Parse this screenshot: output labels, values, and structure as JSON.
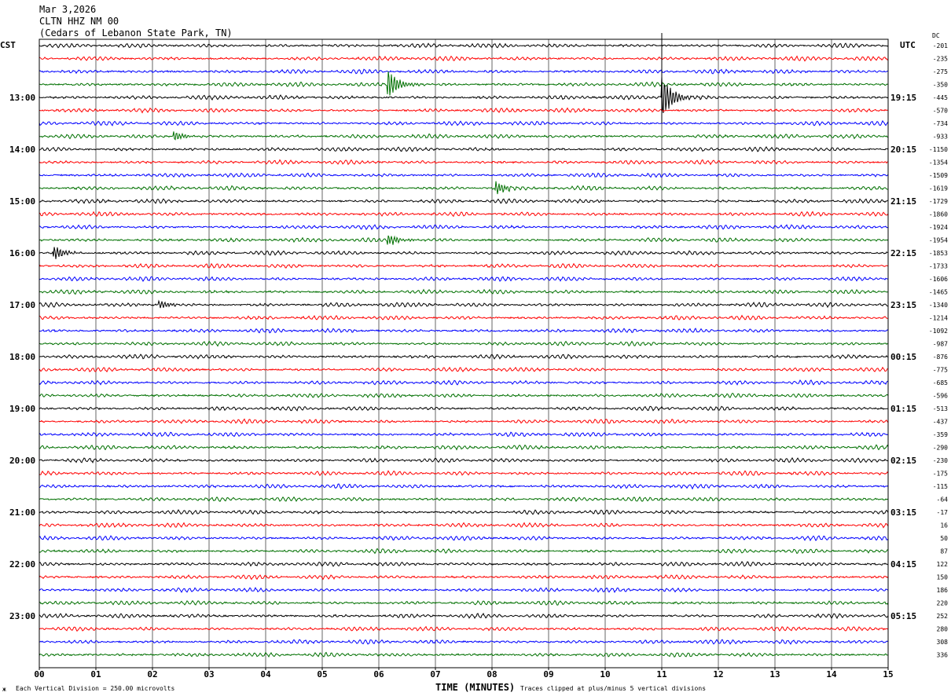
{
  "header": {
    "date": "Mar 3,2026",
    "station": "CLTN HHZ NM 00",
    "location": "(Cedars of Lebanon State Park, TN)"
  },
  "chart_data": {
    "type": "line",
    "subtype": "helicorder",
    "xlabel": "TIME (MINUTES)",
    "xlim": [
      0,
      15
    ],
    "x_ticks": [
      "00",
      "01",
      "02",
      "03",
      "04",
      "05",
      "06",
      "07",
      "08",
      "09",
      "10",
      "11",
      "12",
      "13",
      "14",
      "15"
    ],
    "left_timezone": "CST",
    "right_timezone": "UTC",
    "dc_label": "DC",
    "left_hour_labels": [
      "13:00",
      "14:00",
      "15:00",
      "16:00",
      "17:00",
      "18:00",
      "19:00",
      "20:00",
      "21:00",
      "22:00",
      "23:00"
    ],
    "right_hour_labels": [
      "19:15",
      "20:15",
      "21:15",
      "22:15",
      "23:15",
      "00:15",
      "01:15",
      "02:15",
      "03:15",
      "04:15",
      "05:15"
    ],
    "trace_minutes": 15,
    "trace_count": 48,
    "trace_colors": [
      "#000000",
      "#ff0000",
      "#0000ff",
      "#007000"
    ],
    "dc_offsets": [
      -201,
      -235,
      -275,
      -350,
      -445,
      -570,
      -734,
      -933,
      -1150,
      -1354,
      -1509,
      -1619,
      -1729,
      -1860,
      -1924,
      -1954,
      -1853,
      -1733,
      -1606,
      -1465,
      -1340,
      -1214,
      -1092,
      -987,
      -876,
      -775,
      -685,
      -596,
      -513,
      -437,
      -359,
      -290,
      -230,
      -175,
      -115,
      -64,
      -17,
      16,
      50,
      87,
      122,
      150,
      186,
      220,
      252,
      280,
      308,
      336
    ],
    "events": [
      {
        "trace": 3,
        "minute": 6.15,
        "amplitude": 3.5
      },
      {
        "trace": 4,
        "minute": 11.0,
        "amplitude": 5
      },
      {
        "trace": 7,
        "minute": 2.35,
        "amplitude": 1.2
      },
      {
        "trace": 11,
        "minute": 8.05,
        "amplitude": 1.6
      },
      {
        "trace": 15,
        "minute": 6.15,
        "amplitude": 1.4
      },
      {
        "trace": 16,
        "minute": 0.25,
        "amplitude": 1.6
      },
      {
        "trace": 20,
        "minute": 2.1,
        "amplitude": 1.0
      }
    ],
    "scale_note": "Each Vertical Division =  250.00 microvolts",
    "clip_note": "Traces clipped at plus/minus 5 vertical divisions"
  }
}
